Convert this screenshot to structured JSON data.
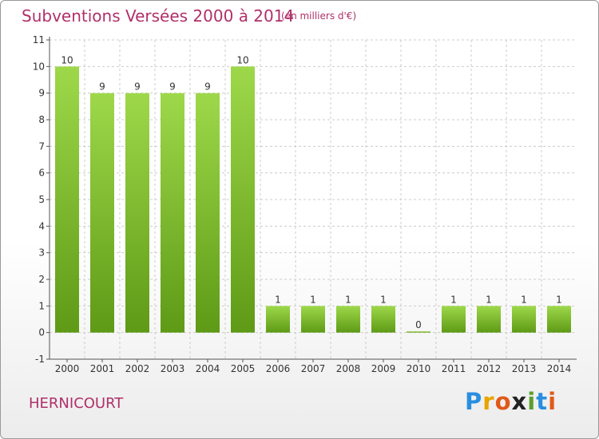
{
  "header": {
    "title": "Subventions Versées 2000 à 2014",
    "subtitle": "(en milliers d'€)"
  },
  "footer": {
    "commune": "HERNICOURT",
    "logo_letters": [
      "P",
      "r",
      "o",
      "x",
      "i",
      "t",
      "i"
    ]
  },
  "colors": {
    "title": "#b0306a",
    "bar_light": "#9ed84a",
    "bar_dark": "#5e9a16",
    "grid": "#cccccc"
  },
  "chart_data": {
    "type": "bar",
    "title": "Subventions Versées 2000 à 2014",
    "subtitle": "(en milliers d'€)",
    "xlabel": "",
    "ylabel": "",
    "categories": [
      "2000",
      "2001",
      "2002",
      "2003",
      "2004",
      "2005",
      "2006",
      "2007",
      "2008",
      "2009",
      "2010",
      "2011",
      "2012",
      "2013",
      "2014"
    ],
    "values": [
      10,
      9,
      9,
      9,
      9,
      10,
      1,
      1,
      1,
      1,
      0,
      1,
      1,
      1,
      1
    ],
    "ylim": [
      -1,
      11
    ],
    "yticks": [
      "-1",
      "0",
      "1",
      "2",
      "3",
      "4",
      "5",
      "6",
      "7",
      "8",
      "9",
      "10",
      "11"
    ],
    "grid": "horizontal dashed",
    "legend": "none"
  }
}
